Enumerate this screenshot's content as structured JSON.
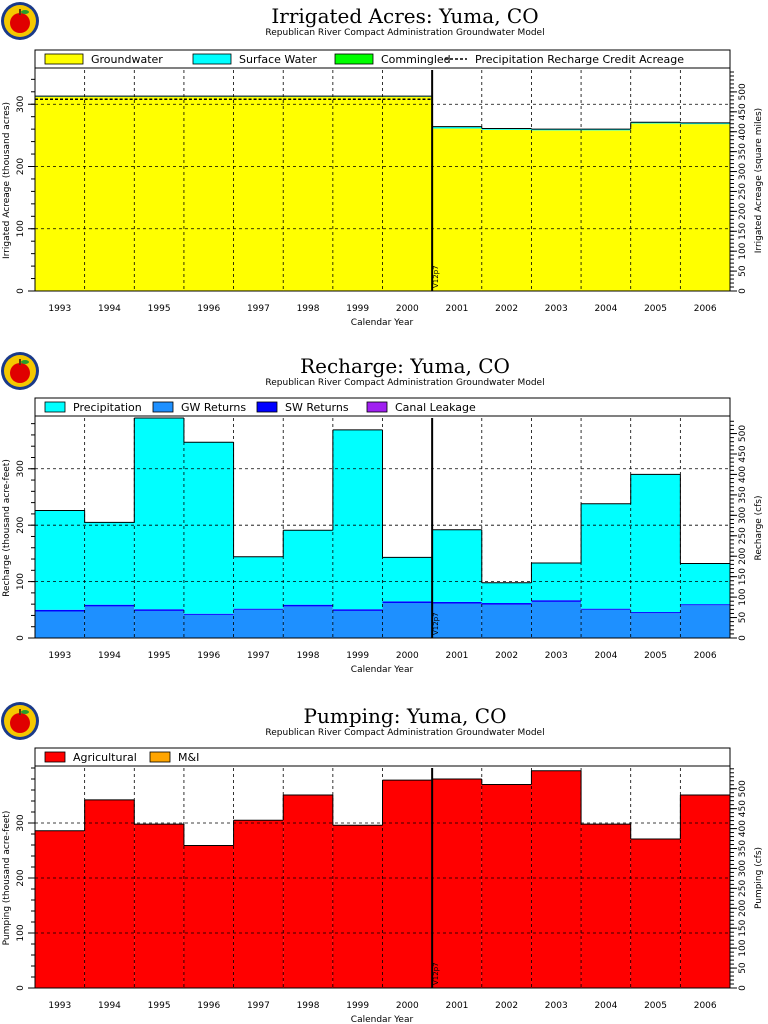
{
  "chart_data": [
    {
      "type": "bar",
      "title": "Irrigated Acres: Yuma, CO",
      "subtitle": "Republican River Compact Administration Groundwater Model",
      "xlabel": "Calendar Year",
      "ylabel": "Irrigated Acreage (thousand acres)",
      "y2label": "Irrigated Acreage (square miles)",
      "categories": [
        "1993",
        "1994",
        "1995",
        "1996",
        "1997",
        "1998",
        "1999",
        "2000",
        "2001",
        "2002",
        "2003",
        "2004",
        "2005",
        "2006"
      ],
      "ylim": [
        0,
        355
      ],
      "y2lim": [
        0,
        555
      ],
      "yticks": [
        0,
        100,
        200,
        300
      ],
      "y2ticks": [
        0,
        50,
        100,
        150,
        200,
        250,
        300,
        350,
        400,
        450,
        500
      ],
      "stacked": true,
      "legend": "top",
      "series": [
        {
          "name": "Groundwater",
          "color": "#ffff00",
          "values": [
            312,
            312,
            312,
            312,
            312,
            312,
            312,
            312,
            261,
            259,
            258,
            258,
            269,
            268
          ]
        },
        {
          "name": "Surface Water",
          "color": "#00ffff",
          "values": [
            1,
            1,
            1,
            1,
            1,
            1,
            1,
            1,
            3,
            2,
            2,
            2,
            2,
            2
          ]
        },
        {
          "name": "Commingled",
          "color": "#00ff00",
          "values": [
            0,
            0,
            0,
            0,
            0,
            0,
            0,
            0,
            0,
            0,
            0,
            0,
            0,
            0
          ]
        }
      ],
      "line_series": [
        {
          "name": "Precipitation Recharge Credit Acreage",
          "style": "dashed",
          "values": [
            308,
            308,
            308,
            308,
            308,
            308,
            308,
            308,
            null,
            null,
            null,
            null,
            null,
            null
          ]
        }
      ],
      "marker": {
        "label": "V12p7",
        "x_after": "2000"
      }
    },
    {
      "type": "bar",
      "title": "Recharge: Yuma, CO",
      "subtitle": "Republican River Compact Administration Groundwater Model",
      "xlabel": "Calendar Year",
      "ylabel": "Recharge (thousand acre-feet)",
      "y2label": "Recharge (cfs)",
      "categories": [
        "1993",
        "1994",
        "1995",
        "1996",
        "1997",
        "1998",
        "1999",
        "2000",
        "2001",
        "2002",
        "2003",
        "2004",
        "2005",
        "2006"
      ],
      "ylim": [
        0,
        390
      ],
      "y2lim": [
        0,
        538
      ],
      "yticks": [
        0,
        100,
        200,
        300
      ],
      "y2ticks": [
        0,
        50,
        100,
        150,
        200,
        250,
        300,
        350,
        400,
        450,
        500
      ],
      "stacked": true,
      "legend": "top",
      "series": [
        {
          "name": "GW Returns",
          "color": "#1e90ff",
          "values": [
            47,
            56,
            48,
            41,
            50,
            56,
            48,
            62,
            61,
            59,
            64,
            50,
            44,
            58
          ]
        },
        {
          "name": "SW Returns",
          "color": "#0000ff",
          "values": [
            3,
            3,
            3,
            2,
            2,
            3,
            3,
            3,
            3,
            3,
            3,
            2,
            2,
            2
          ]
        },
        {
          "name": "Canal Leakage",
          "color": "#a020f0",
          "values": [
            0,
            0,
            0,
            0,
            0,
            0,
            0,
            0,
            0,
            0,
            0,
            0,
            0,
            0
          ]
        },
        {
          "name": "Precipitation",
          "color": "#00ffff",
          "values": [
            176,
            146,
            339,
            304,
            92,
            132,
            318,
            78,
            128,
            36,
            66,
            186,
            244,
            72
          ]
        }
      ],
      "marker": {
        "label": "V12p7",
        "x_after": "2000"
      }
    },
    {
      "type": "bar",
      "title": "Pumping: Yuma, CO",
      "subtitle": "Republican River Compact Administration Groundwater Model",
      "xlabel": "Calendar Year",
      "ylabel": "Pumping (thousand acre-feet)",
      "y2label": "Pumping (cfs)",
      "categories": [
        "1993",
        "1994",
        "1995",
        "1996",
        "1997",
        "1998",
        "1999",
        "2000",
        "2001",
        "2002",
        "2003",
        "2004",
        "2005",
        "2006"
      ],
      "ylim": [
        0,
        400
      ],
      "y2lim": [
        0,
        552
      ],
      "yticks": [
        0,
        100,
        200,
        300
      ],
      "y2ticks": [
        0,
        50,
        100,
        150,
        200,
        250,
        300,
        350,
        400,
        450,
        500
      ],
      "stacked": true,
      "legend": "top",
      "series": [
        {
          "name": "Agricultural",
          "color": "#ff0000",
          "values": [
            286,
            342,
            298,
            259,
            305,
            351,
            296,
            378,
            380,
            370,
            395,
            298,
            271,
            351
          ]
        },
        {
          "name": "M&I",
          "color": "#ffa500",
          "values": [
            0,
            0,
            0,
            0,
            0,
            0,
            0,
            0,
            0,
            0,
            0,
            0,
            0,
            0
          ]
        }
      ],
      "marker": {
        "label": "V12p7",
        "x_after": "2000"
      }
    }
  ],
  "logo": {
    "name": "apple-logo"
  }
}
